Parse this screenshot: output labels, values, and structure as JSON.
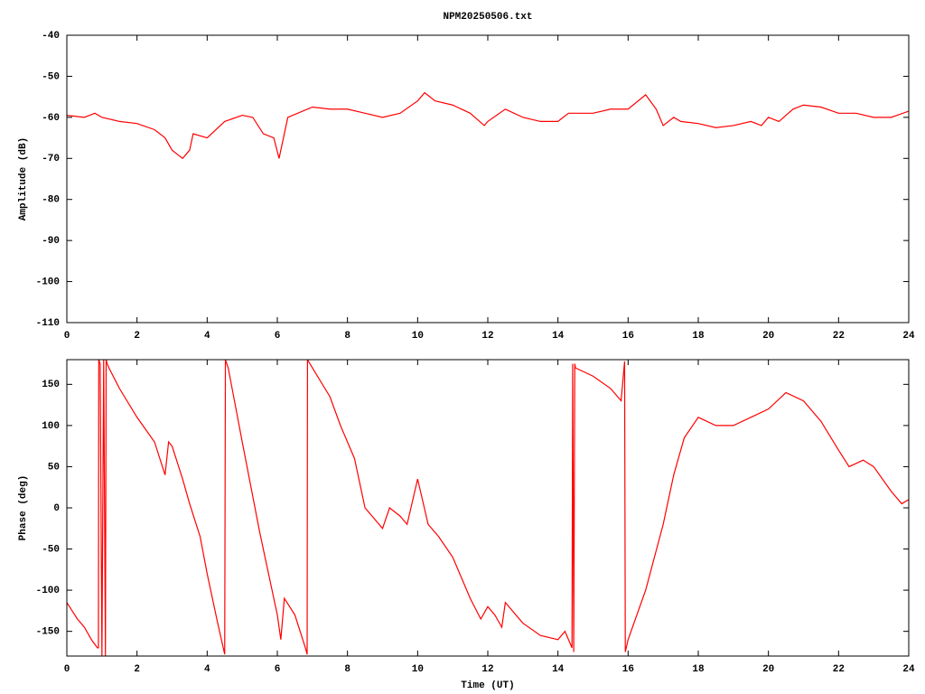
{
  "chart_data": [
    {
      "type": "line",
      "title": "NPM20250506.txt",
      "y_label": "Amplitude (dB)",
      "xlim": [
        0,
        24
      ],
      "xticks": [
        0,
        2,
        4,
        6,
        8,
        10,
        12,
        14,
        16,
        18,
        20,
        22,
        24
      ],
      "ylim": [
        -110,
        -40
      ],
      "yticks": [
        -110,
        -100,
        -90,
        -80,
        -70,
        -60,
        -50,
        -40
      ],
      "grid": false,
      "series": [
        {
          "color": "#ff0000",
          "x": [
            0,
            0.5,
            0.8,
            1,
            1.5,
            2,
            2.5,
            2.8,
            3.0,
            3.3,
            3.5,
            3.6,
            4,
            4.5,
            5,
            5.3,
            5.6,
            5.9,
            6.05,
            6.3,
            7,
            7.5,
            8,
            8.5,
            9,
            9.5,
            10,
            10.2,
            10.5,
            11,
            11.5,
            11.9,
            12,
            12.5,
            13,
            13.5,
            14,
            14.3,
            15,
            15.5,
            16,
            16.5,
            16.8,
            17,
            17.3,
            17.5,
            18,
            18.5,
            19,
            19.5,
            19.8,
            20,
            20.3,
            20.7,
            21,
            21.5,
            22,
            22.5,
            23,
            23.5,
            24
          ],
          "values": [
            -59.5,
            -60,
            -59,
            -60,
            -61,
            -61.5,
            -63,
            -65,
            -68,
            -70,
            -68,
            -64,
            -65,
            -61,
            -59.5,
            -60,
            -64,
            -65,
            -70,
            -60,
            -57.5,
            -58,
            -58,
            -59,
            -60,
            -59,
            -56,
            -54,
            -56,
            -57,
            -59,
            -62,
            -61,
            -58,
            -60,
            -61,
            -61,
            -59,
            -59,
            -58,
            -58,
            -54.5,
            -58,
            -62,
            -60,
            -61,
            -61.5,
            -62.5,
            -62,
            -61,
            -62,
            -60,
            -61,
            -58,
            -57,
            -57.5,
            -59,
            -59,
            -60,
            -60,
            -58.5
          ]
        }
      ]
    },
    {
      "type": "line",
      "x_label": "Time (UT)",
      "y_label": "Phase (deg)",
      "xlim": [
        0,
        24
      ],
      "xticks": [
        0,
        2,
        4,
        6,
        8,
        10,
        12,
        14,
        16,
        18,
        20,
        22,
        24
      ],
      "ylim": [
        -180,
        180
      ],
      "yticks": [
        -150,
        -100,
        -50,
        0,
        50,
        100,
        150
      ],
      "grid": false,
      "series": [
        {
          "color": "#ff0000",
          "x": [
            0,
            0.3,
            0.5,
            0.7,
            0.87,
            0.9,
            0.91,
            0.95,
            1.0,
            1.05,
            1.1,
            1.12,
            1.15,
            1.2,
            1.5,
            2,
            2.5,
            2.8,
            2.9,
            3.0,
            3.3,
            3.5,
            3.8,
            4.0,
            4.3,
            4.5,
            4.52,
            4.6,
            5,
            5.5,
            6,
            6.1,
            6.2,
            6.5,
            6.8,
            6.85,
            6.86,
            7,
            7.5,
            7.8,
            8.2,
            8.5,
            9,
            9.2,
            9.5,
            9.7,
            10,
            10.3,
            10.6,
            11,
            11.5,
            11.8,
            12,
            12.2,
            12.4,
            12.5,
            13,
            13.5,
            14,
            14.2,
            14.4,
            14.42,
            14.45,
            14.48,
            14.5,
            15,
            15.5,
            15.8,
            15.9,
            15.92,
            16,
            16.5,
            17,
            17.3,
            17.6,
            18,
            18.5,
            19,
            19.5,
            20,
            20.5,
            21,
            21.5,
            22,
            22.3,
            22.7,
            23,
            23.5,
            23.8,
            24
          ],
          "values": [
            -115,
            -135,
            -145,
            -160,
            -170,
            -170,
            180,
            175,
            -180,
            180,
            -180,
            180,
            175,
            170,
            145,
            110,
            80,
            40,
            80,
            75,
            35,
            5,
            -35,
            -80,
            -140,
            -178,
            180,
            170,
            80,
            -30,
            -130,
            -160,
            -110,
            -130,
            -170,
            -178,
            180,
            170,
            135,
            100,
            60,
            0,
            -25,
            0,
            -10,
            -20,
            35,
            -20,
            -35,
            -60,
            -110,
            -135,
            -120,
            -130,
            -145,
            -115,
            -140,
            -155,
            -160,
            -150,
            -170,
            175,
            -175,
            175,
            170,
            160,
            145,
            130,
            178,
            -175,
            -160,
            -100,
            -20,
            40,
            85,
            110,
            100,
            100,
            110,
            120,
            140,
            130,
            105,
            70,
            50,
            58,
            50,
            20,
            5,
            10
          ]
        }
      ]
    }
  ]
}
